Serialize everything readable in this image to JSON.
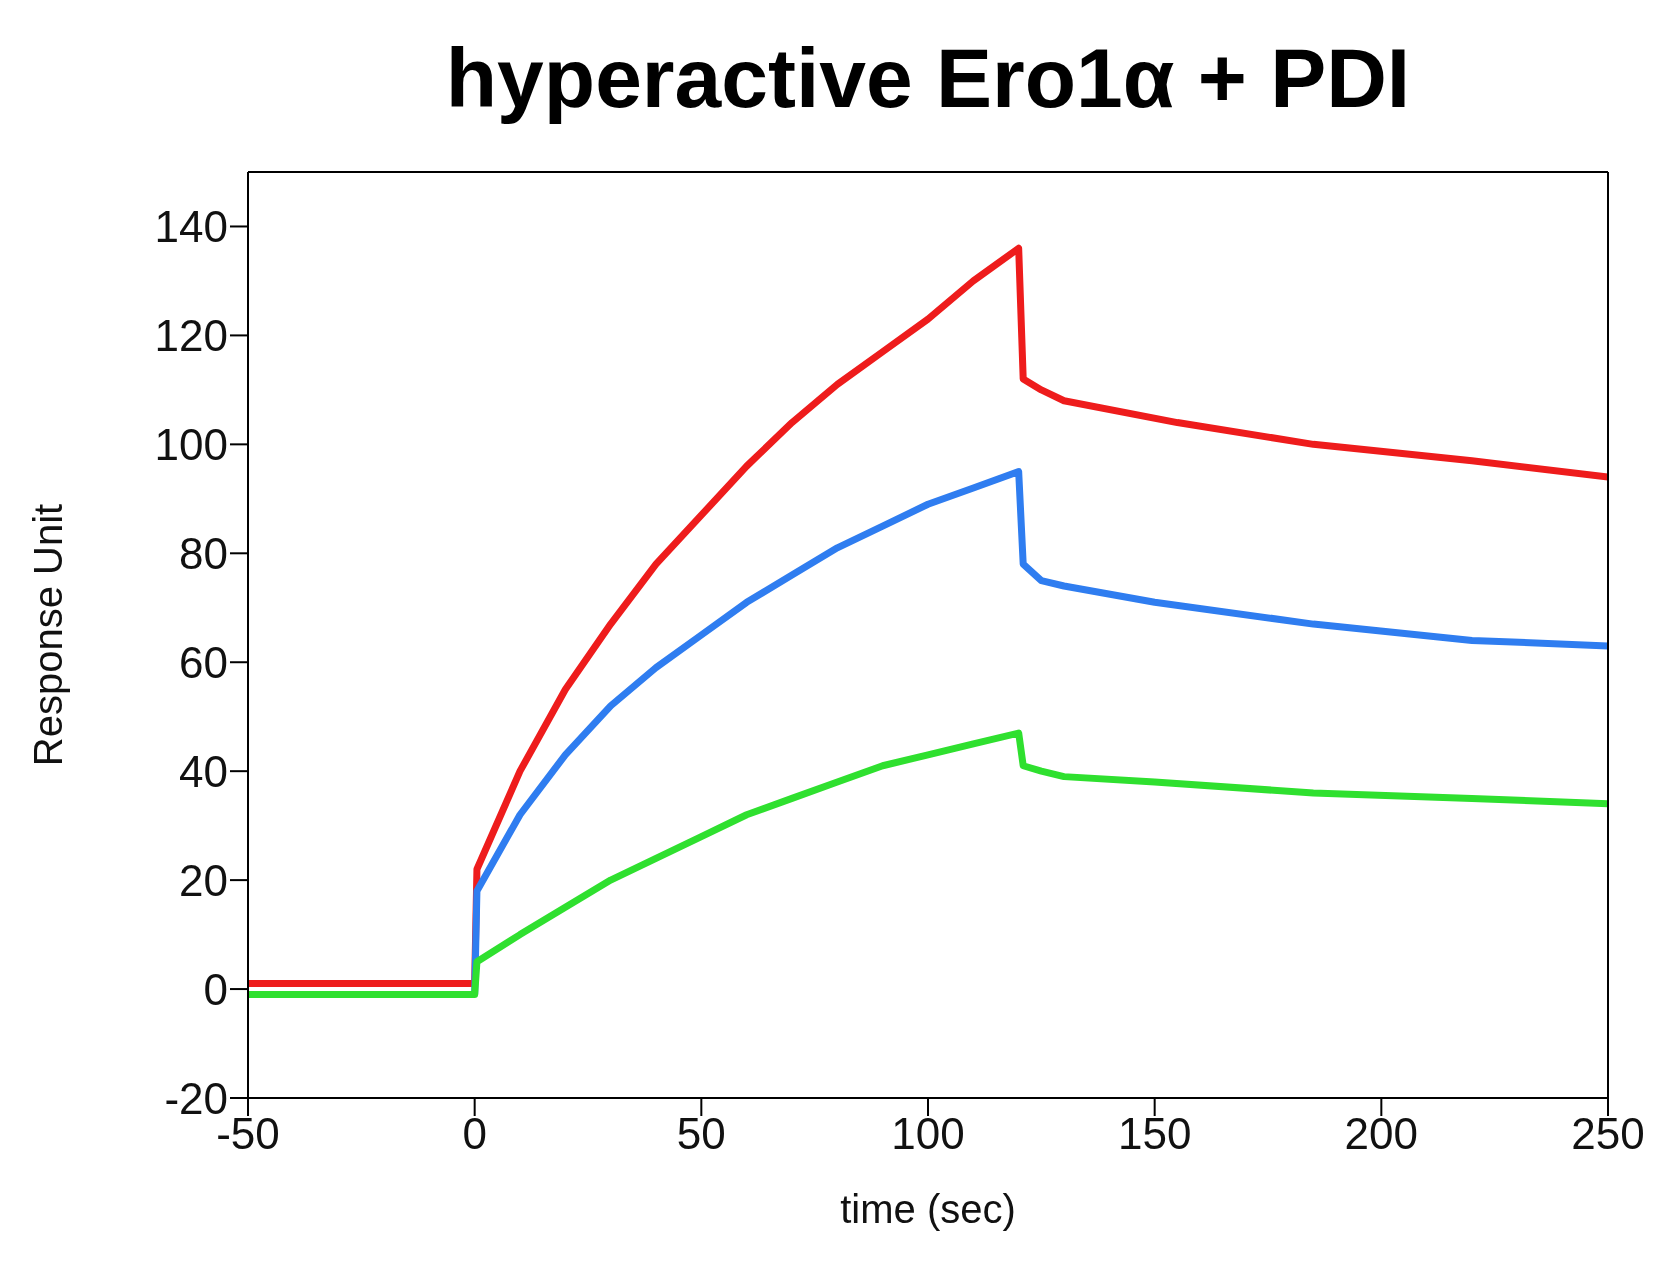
{
  "chart_data": {
    "type": "line",
    "title": "hyperactive Ero1α + PDI",
    "xlabel": "time (sec)",
    "ylabel": "Response Unit",
    "xlim": [
      -50,
      250
    ],
    "xticks": [
      -50,
      0,
      50,
      100,
      150,
      200,
      250
    ],
    "ylim": [
      -20,
      150
    ],
    "yticks": [
      -20,
      0,
      20,
      40,
      60,
      80,
      100,
      120,
      140
    ],
    "grid": false,
    "legend": false,
    "marker": "none",
    "line_style": "solid",
    "series": [
      {
        "color": "#ee1c1c",
        "x": [
          -50,
          -25,
          0,
          0.5,
          10,
          20,
          30,
          40,
          50,
          60,
          70,
          80,
          90,
          100,
          110,
          120,
          121,
          125,
          130,
          155,
          185,
          220,
          250
        ],
        "values": [
          1,
          1,
          1,
          22,
          40,
          55,
          67,
          78,
          87,
          96,
          104,
          111,
          117,
          123,
          130,
          136,
          112,
          110,
          108,
          104,
          100,
          97,
          94
        ]
      },
      {
        "color": "#2f7df0",
        "x": [
          0,
          0.5,
          10,
          20,
          30,
          40,
          50,
          60,
          70,
          80,
          90,
          100,
          110,
          120,
          121,
          125,
          130,
          150,
          185,
          220,
          250
        ],
        "values": [
          -1,
          18,
          32,
          43,
          52,
          59,
          65,
          71,
          76,
          81,
          85,
          89,
          92,
          95,
          78,
          75,
          74,
          71,
          67,
          64,
          63
        ]
      },
      {
        "color": "#2fe02f",
        "x": [
          -50,
          -25,
          0,
          0.5,
          10,
          20,
          30,
          40,
          50,
          60,
          70,
          80,
          90,
          100,
          110,
          120,
          121,
          125,
          130,
          150,
          185,
          220,
          250
        ],
        "values": [
          -1,
          -1,
          -1,
          5,
          10,
          15,
          20,
          24,
          28,
          32,
          35,
          38,
          41,
          43,
          45,
          47,
          41,
          40,
          39,
          38,
          36,
          35,
          34
        ]
      }
    ]
  }
}
